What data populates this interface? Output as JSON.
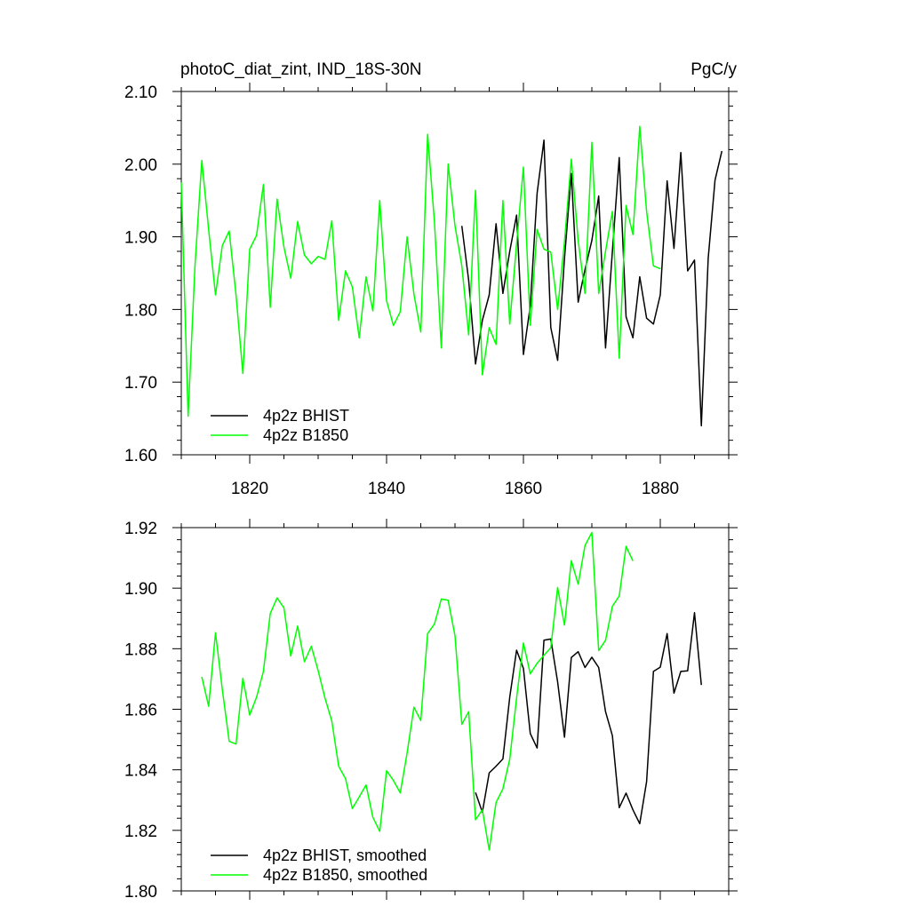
{
  "chart_data": [
    {
      "type": "line",
      "title_left": "photoC_diat_zint, IND_18S-30N",
      "title_right": "PgC/y",
      "xlim": [
        1810,
        1890
      ],
      "ylim": [
        1.6,
        2.1
      ],
      "xticks": [
        1820,
        1840,
        1860,
        1880
      ],
      "xtick_labels": [
        "1820",
        "1840",
        "1860",
        "1880"
      ],
      "yticks": [
        1.6,
        1.7,
        1.8,
        1.9,
        2.0,
        2.1
      ],
      "ytick_labels": [
        "1.60",
        "1.70",
        "1.80",
        "1.90",
        "2.00",
        "2.10"
      ],
      "legend_position": "bottom-left",
      "grid": false,
      "series": [
        {
          "name": "4p2z BHIST",
          "color": "#000000",
          "x": [
            1851,
            1852,
            1853,
            1854,
            1855,
            1856,
            1857,
            1858,
            1859,
            1860,
            1861,
            1862,
            1863,
            1864,
            1865,
            1866,
            1867,
            1868,
            1869,
            1870,
            1871,
            1872,
            1873,
            1874,
            1875,
            1876,
            1877,
            1878,
            1879,
            1880,
            1881,
            1882,
            1883,
            1884,
            1885,
            1886,
            1887,
            1888,
            1889
          ],
          "y": [
            1.915,
            1.84,
            1.725,
            1.785,
            1.82,
            1.918,
            1.822,
            1.88,
            1.93,
            1.738,
            1.805,
            1.96,
            2.033,
            1.775,
            1.73,
            1.87,
            1.987,
            1.81,
            1.855,
            1.895,
            1.956,
            1.747,
            1.88,
            2.009,
            1.79,
            1.761,
            1.845,
            1.788,
            1.78,
            1.82,
            1.977,
            1.884,
            2.016,
            1.853,
            1.868,
            1.64,
            1.87,
            1.978,
            2.018
          ]
        },
        {
          "name": "4p2z B1850",
          "color": "#00ff00",
          "x": [
            1810,
            1811,
            1812,
            1813,
            1814,
            1815,
            1816,
            1817,
            1818,
            1819,
            1820,
            1821,
            1822,
            1823,
            1824,
            1825,
            1826,
            1827,
            1828,
            1829,
            1830,
            1831,
            1832,
            1833,
            1834,
            1835,
            1836,
            1837,
            1838,
            1839,
            1840,
            1841,
            1842,
            1843,
            1844,
            1845,
            1846,
            1847,
            1848,
            1849,
            1850,
            1851,
            1852,
            1853,
            1854,
            1855,
            1856,
            1857,
            1858,
            1859,
            1860,
            1861,
            1862,
            1863,
            1864,
            1865,
            1866,
            1867,
            1868,
            1869,
            1870,
            1871,
            1872,
            1873,
            1874,
            1875,
            1876,
            1877,
            1878,
            1879,
            1880
          ],
          "y": [
            1.975,
            1.653,
            1.86,
            2.005,
            1.91,
            1.82,
            1.888,
            1.908,
            1.82,
            1.712,
            1.883,
            1.902,
            1.972,
            1.803,
            1.952,
            1.886,
            1.843,
            1.921,
            1.875,
            1.863,
            1.873,
            1.869,
            1.922,
            1.785,
            1.853,
            1.831,
            1.761,
            1.845,
            1.798,
            1.95,
            1.812,
            1.778,
            1.797,
            1.9,
            1.821,
            1.769,
            2.041,
            1.92,
            1.747,
            2.0,
            1.915,
            1.86,
            1.765,
            1.964,
            1.71,
            1.775,
            1.752,
            1.95,
            1.78,
            1.89,
            1.996,
            1.778,
            1.91,
            1.883,
            1.879,
            1.8,
            1.893,
            2.007,
            1.895,
            1.822,
            2.03,
            1.822,
            1.88,
            1.935,
            1.733,
            1.943,
            1.903,
            2.052,
            1.935,
            1.86,
            1.856
          ]
        }
      ]
    },
    {
      "type": "line",
      "xlim": [
        1810,
        1890
      ],
      "ylim": [
        1.8,
        1.92
      ],
      "xticks": [
        1820,
        1840,
        1860,
        1880
      ],
      "yticks": [
        1.8,
        1.82,
        1.84,
        1.86,
        1.88,
        1.9,
        1.92
      ],
      "ytick_labels": [
        "1.80",
        "1.82",
        "1.84",
        "1.86",
        "1.88",
        "1.90",
        "1.92"
      ],
      "legend_position": "bottom-left",
      "grid": false,
      "series": [
        {
          "name": "4p2z BHIST, smoothed",
          "color": "#000000",
          "x": [
            1853,
            1854,
            1855,
            1856,
            1857,
            1858,
            1859,
            1860,
            1861,
            1862,
            1863,
            1864,
            1865,
            1866,
            1867,
            1868,
            1869,
            1870,
            1871,
            1872,
            1873,
            1874,
            1875,
            1876,
            1877,
            1878,
            1879,
            1880,
            1881,
            1882,
            1883,
            1884,
            1885,
            1886
          ],
          "y": [
            1.8325,
            1.826,
            1.839,
            1.8412,
            1.8436,
            1.864,
            1.8795,
            1.8735,
            1.852,
            1.8472,
            1.8828,
            1.8832,
            1.869,
            1.8508,
            1.8771,
            1.879,
            1.8738,
            1.8772,
            1.8738,
            1.8592,
            1.8513,
            1.8275,
            1.8323,
            1.8268,
            1.8222,
            1.8361,
            1.8725,
            1.8739,
            1.885,
            1.8653,
            1.8725,
            1.8727,
            1.8919,
            1.868
          ]
        },
        {
          "name": "4p2z B1850, smoothed",
          "color": "#00ff00",
          "x": [
            1813,
            1814,
            1815,
            1816,
            1817,
            1818,
            1819,
            1820,
            1821,
            1822,
            1823,
            1824,
            1825,
            1826,
            1827,
            1828,
            1829,
            1830,
            1831,
            1832,
            1833,
            1834,
            1835,
            1836,
            1837,
            1838,
            1839,
            1840,
            1841,
            1842,
            1843,
            1844,
            1845,
            1846,
            1847,
            1848,
            1849,
            1850,
            1851,
            1852,
            1853,
            1854,
            1855,
            1856,
            1857,
            1858,
            1859,
            1860,
            1861,
            1862,
            1863,
            1864,
            1865,
            1866,
            1867,
            1868,
            1869,
            1870,
            1871,
            1872,
            1873,
            1874,
            1875,
            1876
          ],
          "y": [
            1.8707,
            1.861,
            1.8853,
            1.8665,
            1.8494,
            1.8485,
            1.8702,
            1.8581,
            1.864,
            1.8725,
            1.8916,
            1.8968,
            1.8935,
            1.8776,
            1.8875,
            1.8757,
            1.8808,
            1.8728,
            1.8637,
            1.8561,
            1.8412,
            1.8371,
            1.8272,
            1.831,
            1.835,
            1.8243,
            1.8197,
            1.8397,
            1.8365,
            1.8324,
            1.8455,
            1.8607,
            1.8563,
            1.885,
            1.8882,
            1.8964,
            1.896,
            1.8843,
            1.855,
            1.8592,
            1.8235,
            1.8268,
            1.8135,
            1.8292,
            1.8337,
            1.8435,
            1.8637,
            1.8819,
            1.8717,
            1.8752,
            1.8778,
            1.8803,
            1.9002,
            1.8878,
            1.9091,
            1.9013,
            1.9141,
            1.9184,
            1.8794,
            1.8828,
            1.894,
            1.8974,
            1.9138,
            1.909
          ]
        }
      ]
    }
  ]
}
